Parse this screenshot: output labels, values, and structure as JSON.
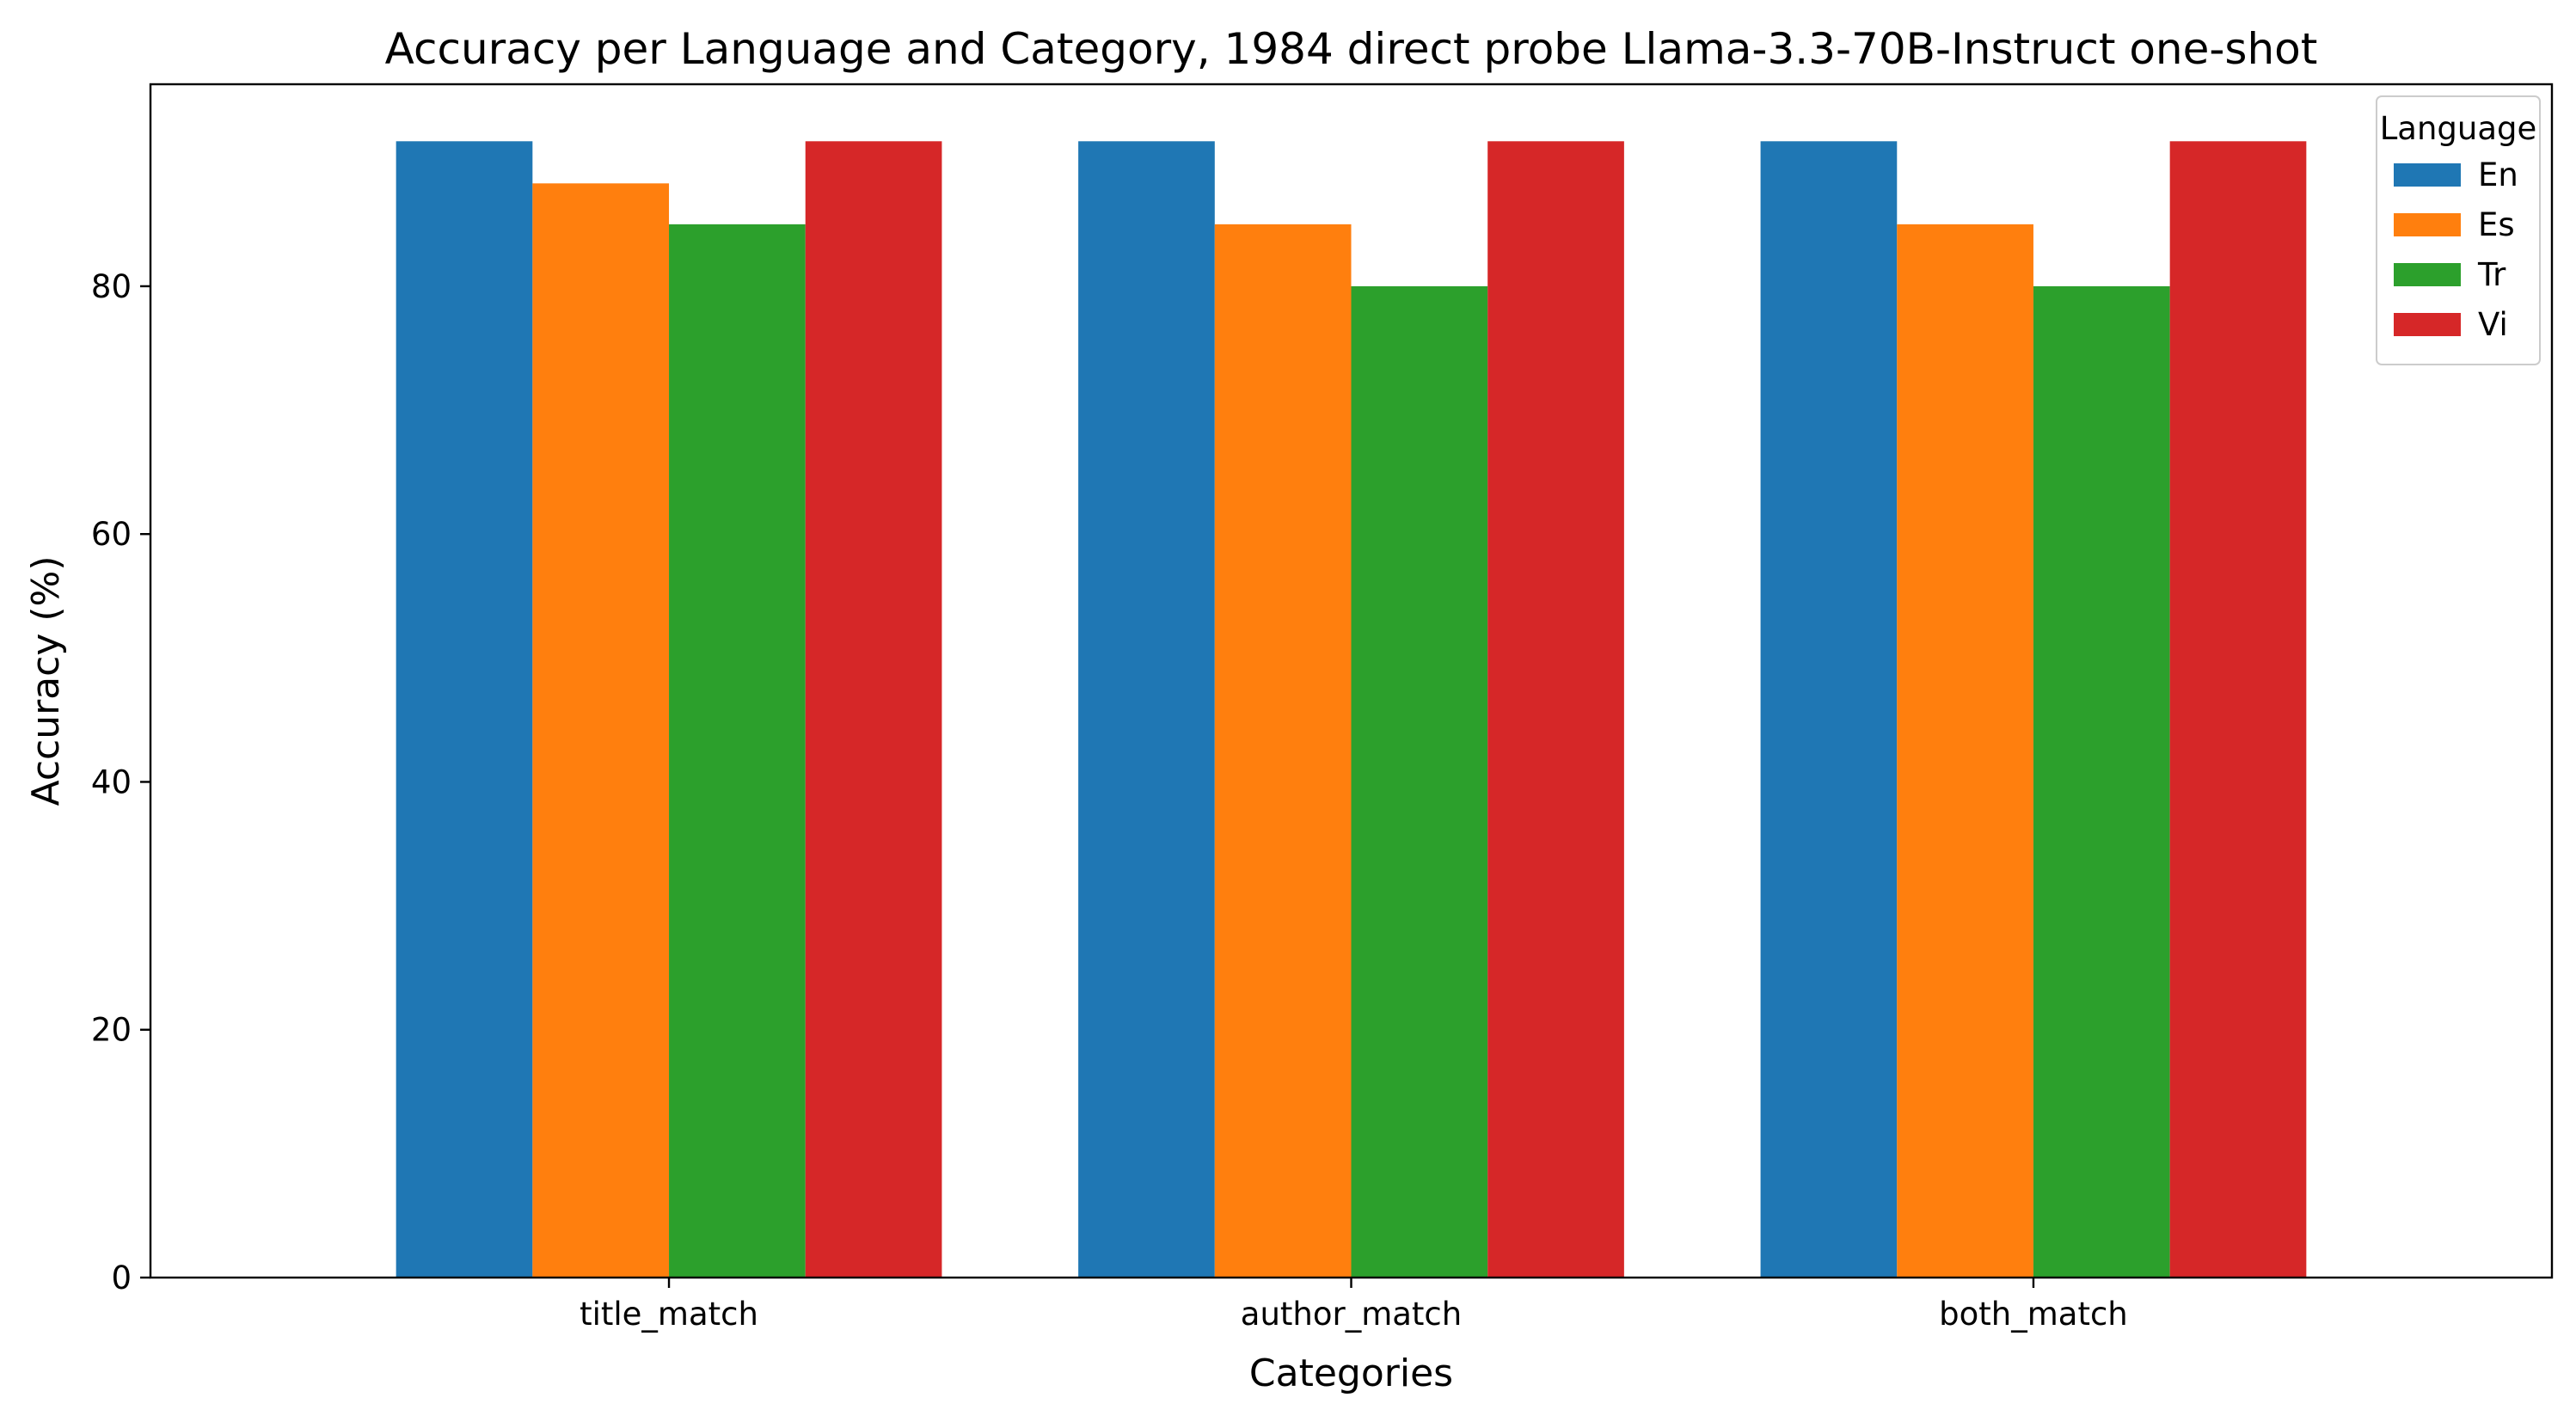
{
  "chart_data": {
    "type": "bar",
    "title": "Accuracy per Language and Category, 1984 direct probe Llama-3.3-70B-Instruct one-shot",
    "xlabel": "Categories",
    "ylabel": "Accuracy (%)",
    "categories": [
      "title_match",
      "author_match",
      "both_match"
    ],
    "ylim": [
      0,
      96.3
    ],
    "yticks": [
      0,
      20,
      40,
      60,
      80
    ],
    "grid": false,
    "legend": {
      "title": "Language",
      "placement": "top-right"
    },
    "series": [
      {
        "name": "En",
        "color": "#1f77b4",
        "values": [
          91.7,
          91.7,
          91.7
        ]
      },
      {
        "name": "Es",
        "color": "#ff7f0e",
        "values": [
          88.3,
          85.0,
          85.0
        ]
      },
      {
        "name": "Tr",
        "color": "#2ca02c",
        "values": [
          85.0,
          80.0,
          80.0
        ]
      },
      {
        "name": "Vi",
        "color": "#d62728",
        "values": [
          91.7,
          91.7,
          91.7
        ]
      }
    ]
  }
}
